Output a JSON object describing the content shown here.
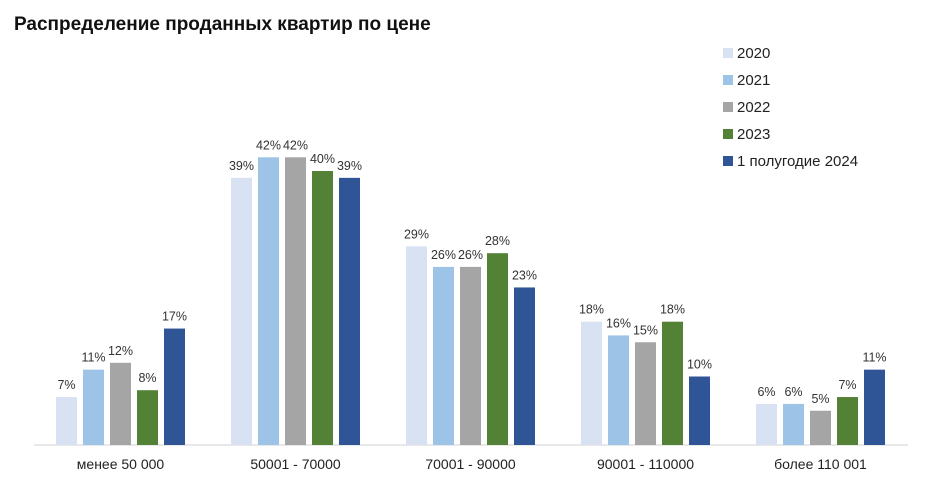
{
  "chart_data": {
    "type": "bar",
    "title": "Распределение проданных квартир по цене",
    "categories": [
      "менее 50 000",
      "50001 - 70000",
      "70001 - 90000",
      "90001 - 110000",
      "более 110 001"
    ],
    "series": [
      {
        "name": "2020",
        "color": "#d9e2f3",
        "values": [
          7,
          39,
          29,
          18,
          6
        ],
        "labels": [
          "7%",
          "39%",
          "29%",
          "18%",
          "6%"
        ]
      },
      {
        "name": "2021",
        "color": "#9dc3e6",
        "values": [
          11,
          42,
          26,
          16,
          6
        ],
        "labels": [
          "11%",
          "42%",
          "26%",
          "16%",
          "6%"
        ]
      },
      {
        "name": "2022",
        "color": "#a5a5a5",
        "values": [
          12,
          42,
          26,
          15,
          5
        ],
        "labels": [
          "12%",
          "42%",
          "26%",
          "15%",
          "5%"
        ]
      },
      {
        "name": "2023",
        "color": "#538135",
        "values": [
          8,
          40,
          28,
          18,
          7
        ],
        "labels": [
          "8%",
          "40%",
          "28%",
          "18%",
          "7%"
        ]
      },
      {
        "name": "1 полугодие 2024",
        "color": "#2f5597",
        "values": [
          17,
          39,
          23,
          10,
          11
        ],
        "labels": [
          "17%",
          "39%",
          "23%",
          "10%",
          "11%"
        ]
      }
    ],
    "ylim": [
      0,
      45
    ],
    "legend_position": "top-right",
    "grid": false
  }
}
